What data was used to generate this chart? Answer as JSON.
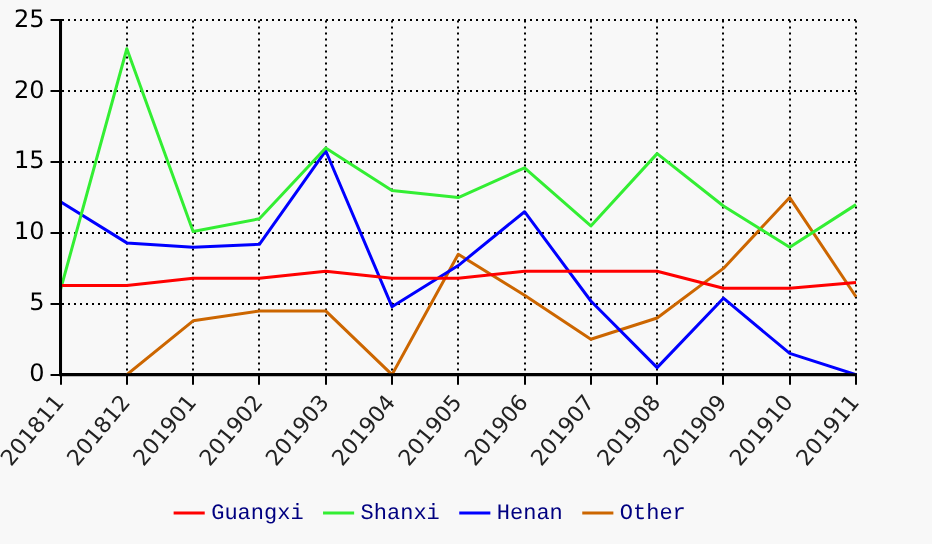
{
  "chart_data": {
    "type": "line",
    "categories": [
      "201811",
      "201812",
      "201901",
      "201902",
      "201903",
      "201904",
      "201905",
      "201906",
      "201907",
      "201908",
      "201909",
      "201910",
      "201911"
    ],
    "series": [
      {
        "name": "Guangxi",
        "color": "#ff0000",
        "values": [
          6.3,
          6.3,
          6.8,
          6.8,
          7.3,
          6.8,
          6.8,
          7.3,
          7.3,
          7.3,
          6.1,
          6.1,
          6.5
        ]
      },
      {
        "name": "Shanxi",
        "color": "#33ee33",
        "values": [
          6,
          23,
          10.1,
          11,
          16,
          13,
          12.5,
          14.6,
          10.5,
          15.6,
          11.9,
          9,
          12
        ]
      },
      {
        "name": "Henan",
        "color": "#0000ff",
        "values": [
          12.2,
          9.3,
          9,
          9.2,
          15.8,
          4.8,
          7.7,
          11.5,
          5.2,
          0.5,
          5.4,
          1.5,
          0
        ]
      },
      {
        "name": "Other",
        "color": "#cc6600",
        "values": [
          null,
          0,
          3.8,
          4.5,
          4.5,
          0,
          8.5,
          5.6,
          2.5,
          4,
          7.5,
          12.5,
          5.5
        ]
      }
    ],
    "ylim": [
      0,
      25
    ],
    "yticks": [
      0,
      5,
      10,
      15,
      20,
      25
    ],
    "grid": true,
    "legend": "bottom",
    "marker": "none",
    "line_style": "solid"
  }
}
